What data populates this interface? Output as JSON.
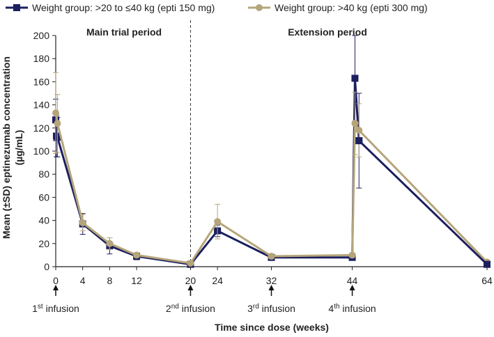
{
  "chart_data": {
    "type": "line",
    "xlabel": "Time since dose (weeks)",
    "ylabel": "Mean (±SD) eptinezumab concentration (µg/mL)",
    "ylabel_line1": "Mean (±SD) eptinezumab concentration",
    "ylabel_line2": "(µg/mL)",
    "xlim": [
      0,
      64
    ],
    "ylim": [
      0,
      200
    ],
    "x_ticks": [
      0,
      4,
      8,
      12,
      20,
      24,
      32,
      44,
      64
    ],
    "y_ticks": [
      0,
      20,
      40,
      60,
      80,
      100,
      120,
      140,
      160,
      180,
      200
    ],
    "period_divider_x": 20,
    "period_labels": {
      "main": "Main trial period",
      "extension": "Extension period"
    },
    "legend": [
      {
        "name": "Weight group: >20 to ≤40 kg (epti 150 mg)",
        "color": "#1b1f5e",
        "marker": "square"
      },
      {
        "name": "Weight group: >40 kg (epti 300 mg)",
        "color": "#b5a57a",
        "marker": "circle"
      }
    ],
    "series": [
      {
        "name": "Weight group: >20 to ≤40 kg (epti 150 mg)",
        "color": "#1b1f5e",
        "marker": "square",
        "x": [
          0,
          0.1,
          0.25,
          4,
          8,
          12,
          20,
          24,
          32,
          44,
          44.4,
          45
        ],
        "values": [
          127,
          113,
          112,
          37,
          18,
          9,
          2,
          31,
          8,
          8,
          163,
          109
        ],
        "sd": [
          18,
          18,
          17,
          9,
          7,
          3,
          1,
          5,
          2,
          2,
          37,
          41
        ]
      },
      {
        "name": "Weight group: >40 kg (epti 300 mg)",
        "color": "#b5a57a",
        "marker": "circle",
        "x": [
          0,
          0.25,
          4,
          8,
          12,
          20,
          24,
          32,
          44,
          44.4,
          45,
          64
        ],
        "values": [
          133,
          124,
          38,
          20,
          10,
          3,
          39,
          9,
          10,
          124,
          118,
          4
        ],
        "sd": [
          35,
          25,
          7,
          5,
          2,
          1,
          15,
          2,
          2,
          27,
          23,
          1
        ]
      },
      {
        "name": "Weight group: >20 to ≤40 kg (epti 150 mg) tail",
        "color": "#1b1f5e",
        "marker": "square",
        "x": [
          45,
          64
        ],
        "values": [
          109,
          2
        ],
        "sd": [
          0,
          1
        ]
      }
    ],
    "infusions": [
      {
        "x": 0,
        "sup": "st",
        "num": "1",
        "label": " infusion"
      },
      {
        "x": 20,
        "sup": "nd",
        "num": "2",
        "label": " infusion"
      },
      {
        "x": 32,
        "sup": "rd",
        "num": "3",
        "label": " infusion"
      },
      {
        "x": 44,
        "sup": "th",
        "num": "4",
        "label": " infusion"
      }
    ]
  }
}
